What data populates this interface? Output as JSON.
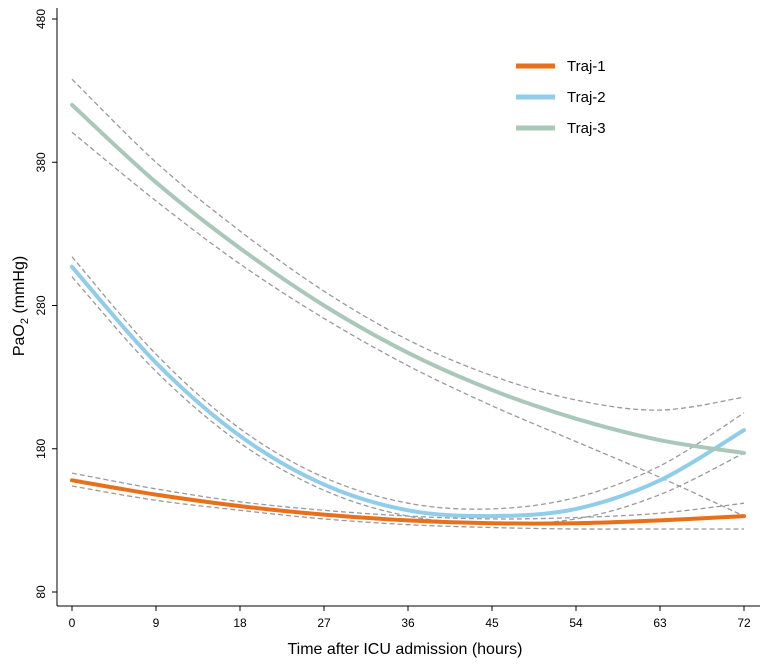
{
  "chart_data": {
    "type": "line",
    "title": "",
    "xlabel": "Time after ICU admission (hours)",
    "ylabel": {
      "main": "PaO",
      "sub": "2",
      "unit": " (mmHg)"
    },
    "xlim": [
      0,
      72
    ],
    "ylim": [
      80,
      480
    ],
    "xticks": [
      0,
      9,
      18,
      27,
      36,
      45,
      54,
      63,
      72
    ],
    "yticks": [
      80,
      180,
      280,
      380,
      480
    ],
    "grid": false,
    "legend_position": "top-right",
    "series": [
      {
        "name": "Traj-1",
        "color": "#E8701A",
        "x": [
          0,
          9,
          18,
          27,
          36,
          45,
          54,
          63,
          72
        ],
        "y": [
          158,
          148,
          140,
          134,
          130,
          128,
          128,
          130,
          133
        ],
        "ci_lower": [
          154,
          144,
          137,
          131,
          127,
          125,
          124,
          124,
          124
        ],
        "ci_upper": [
          163,
          152,
          143,
          137,
          133,
          131,
          132,
          135,
          142
        ]
      },
      {
        "name": "Traj-2",
        "color": "#8FCDEA",
        "x": [
          0,
          9,
          18,
          27,
          36,
          45,
          54,
          63,
          72
        ],
        "y": [
          307,
          240,
          189,
          155,
          137,
          133,
          138,
          158,
          193
        ],
        "ci_lower": [
          300,
          234,
          184,
          151,
          133,
          128,
          131,
          148,
          177
        ],
        "ci_upper": [
          314,
          246,
          194,
          160,
          142,
          138,
          146,
          168,
          205
        ]
      },
      {
        "name": "Traj-3",
        "color": "#A9C8BA",
        "x": [
          0,
          9,
          18,
          27,
          36,
          45,
          54,
          63,
          72
        ],
        "y": [
          420,
          366,
          320,
          280,
          247,
          221,
          201,
          186,
          177
        ],
        "ci_lower": [
          401,
          353,
          309,
          271,
          238,
          210,
          185,
          160,
          133
        ],
        "ci_upper": [
          438,
          380,
          332,
          290,
          256,
          231,
          214,
          207,
          216
        ]
      }
    ]
  }
}
